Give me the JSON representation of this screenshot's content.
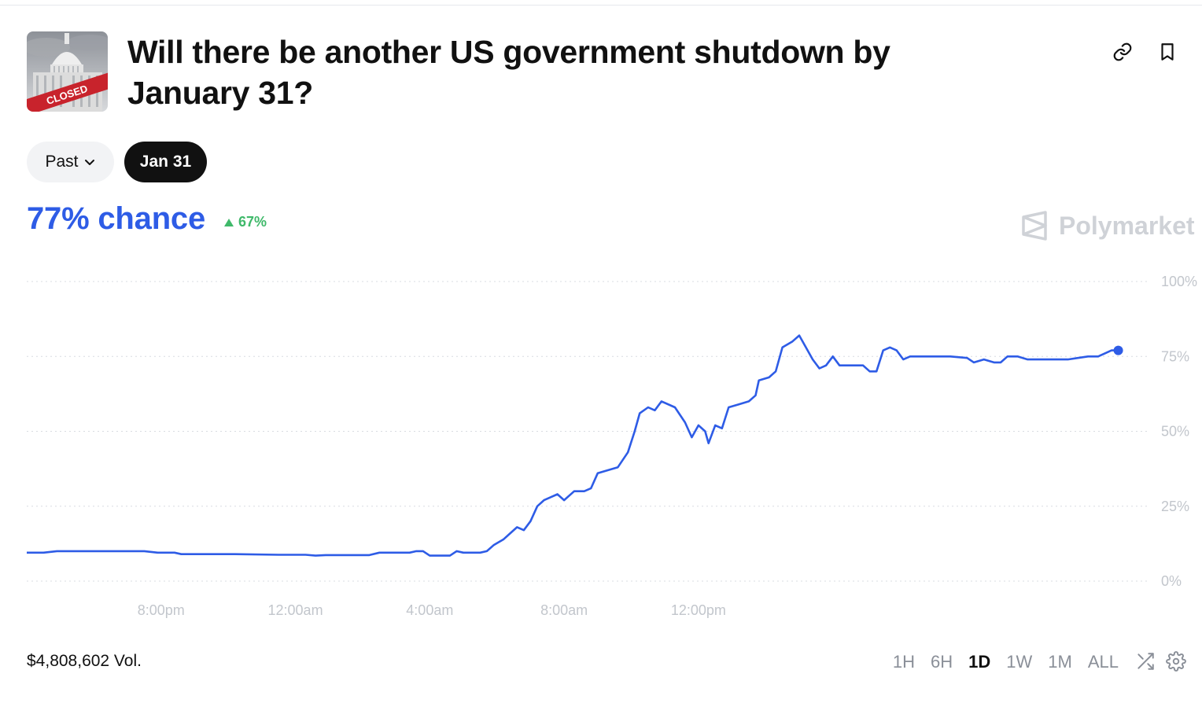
{
  "market": {
    "title": "Will there be another US government shutdown by January 31?",
    "thumbnail_stamp": "CLOSED"
  },
  "header_icons": [
    "link-icon",
    "bookmark-icon"
  ],
  "filters": {
    "past_label": "Past",
    "active_date_label": "Jan 31"
  },
  "stats": {
    "chance_label": "77% chance",
    "change_label": "67%",
    "change_direction": "up",
    "volume_label": "$4,808,602 Vol."
  },
  "brand": {
    "name": "Polymarket"
  },
  "time_ranges": {
    "options": [
      "1H",
      "6H",
      "1D",
      "1W",
      "1M",
      "ALL"
    ],
    "selected": "1D"
  },
  "colors": {
    "accent": "#2e5ce6",
    "positive": "#3fb96a",
    "watermark": "#cfd2d7",
    "grid": "#d9dce1",
    "axis_text": "#c2c6cc"
  },
  "chart_data": {
    "type": "line",
    "y_ticks": [
      "100%",
      "75%",
      "50%",
      "25%",
      "0%"
    ],
    "x_ticks": [
      "8:00pm",
      "12:00am",
      "4:00am",
      "8:00am",
      "12:00pm"
    ],
    "ylim": [
      0,
      100
    ],
    "grid": true,
    "x_unit_note": "hours from 4:00pm, previous day",
    "series": [
      {
        "points": [
          [
            0,
            9.5
          ],
          [
            0.5,
            9.5
          ],
          [
            0.9,
            10
          ],
          [
            3.5,
            10
          ],
          [
            3.9,
            9.5
          ],
          [
            4.4,
            9.5
          ],
          [
            4.6,
            9
          ],
          [
            6.2,
            9
          ],
          [
            7.5,
            8.8
          ],
          [
            8.3,
            8.8
          ],
          [
            8.6,
            8.5
          ],
          [
            8.9,
            8.7
          ],
          [
            9.5,
            8.7
          ],
          [
            10.2,
            8.7
          ],
          [
            10.5,
            9.5
          ],
          [
            11.4,
            9.5
          ],
          [
            11.6,
            10
          ],
          [
            11.8,
            10
          ],
          [
            12,
            8.5
          ],
          [
            12.6,
            8.5
          ],
          [
            12.8,
            10
          ],
          [
            13.0,
            9.5
          ],
          [
            13.5,
            9.5
          ],
          [
            13.7,
            10
          ],
          [
            13.9,
            12
          ],
          [
            14.2,
            14
          ],
          [
            14.4,
            16
          ],
          [
            14.6,
            18
          ],
          [
            14.8,
            17
          ],
          [
            15.0,
            20
          ],
          [
            15.2,
            25
          ],
          [
            15.4,
            27
          ],
          [
            15.6,
            28
          ],
          [
            15.8,
            29
          ],
          [
            16.0,
            27
          ],
          [
            16.3,
            30
          ],
          [
            16.6,
            30
          ],
          [
            16.8,
            31
          ],
          [
            17.0,
            36
          ],
          [
            17.3,
            37
          ],
          [
            17.6,
            38
          ],
          [
            17.9,
            43
          ],
          [
            18.1,
            50
          ],
          [
            18.25,
            56
          ],
          [
            18.5,
            58
          ],
          [
            18.7,
            57
          ],
          [
            18.9,
            60
          ],
          [
            19.3,
            58
          ],
          [
            19.6,
            53
          ],
          [
            19.8,
            48
          ],
          [
            20.0,
            52
          ],
          [
            20.2,
            50
          ],
          [
            20.3,
            46
          ],
          [
            20.5,
            52
          ],
          [
            20.7,
            51
          ],
          [
            20.9,
            58
          ],
          [
            21.2,
            59
          ],
          [
            21.5,
            60
          ],
          [
            21.7,
            62
          ],
          [
            21.8,
            67
          ],
          [
            22.1,
            68
          ],
          [
            22.3,
            70
          ],
          [
            22.5,
            78
          ],
          [
            22.8,
            80
          ],
          [
            23.0,
            82
          ],
          [
            23.2,
            78
          ],
          [
            23.4,
            74
          ],
          [
            23.6,
            71
          ],
          [
            23.8,
            72
          ],
          [
            24.0,
            75
          ],
          [
            24.2,
            72
          ],
          [
            24.6,
            72
          ],
          [
            24.9,
            72
          ],
          [
            25.1,
            70
          ],
          [
            25.3,
            70
          ],
          [
            25.5,
            77
          ],
          [
            25.7,
            78
          ],
          [
            25.9,
            77
          ],
          [
            26.1,
            74
          ],
          [
            26.3,
            75
          ],
          [
            26.6,
            75
          ],
          [
            27.0,
            75
          ],
          [
            27.5,
            75
          ],
          [
            28.0,
            74.5
          ],
          [
            28.2,
            73
          ],
          [
            28.5,
            74
          ],
          [
            28.8,
            73
          ],
          [
            29.0,
            73
          ],
          [
            29.2,
            75
          ],
          [
            29.5,
            75
          ],
          [
            29.8,
            74
          ],
          [
            30.2,
            74
          ],
          [
            30.6,
            74
          ],
          [
            31.0,
            74
          ],
          [
            31.3,
            74.5
          ],
          [
            31.6,
            75
          ],
          [
            31.9,
            75
          ],
          [
            32.1,
            76
          ],
          [
            32.3,
            77
          ],
          [
            32.5,
            77
          ]
        ]
      }
    ]
  }
}
